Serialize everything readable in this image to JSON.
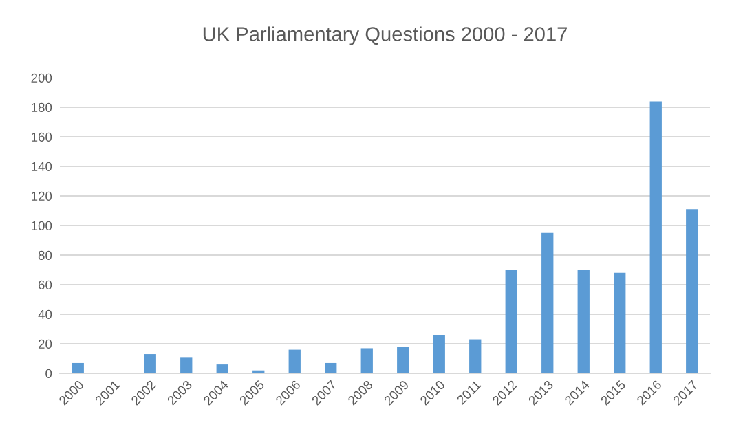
{
  "chart_data": {
    "type": "bar",
    "title": "UK Parliamentary Questions 2000 - 2017",
    "categories": [
      "2000",
      "2001",
      "2002",
      "2003",
      "2004",
      "2005",
      "2006",
      "2007",
      "2008",
      "2009",
      "2010",
      "2011",
      "2012",
      "2013",
      "2014",
      "2015",
      "2016",
      "2017"
    ],
    "values": [
      7,
      0,
      13,
      11,
      6,
      2,
      16,
      7,
      17,
      18,
      26,
      23,
      70,
      95,
      70,
      68,
      184,
      111
    ],
    "color": "#5b9bd5",
    "ylim": [
      0,
      200
    ],
    "yticks": [
      0,
      20,
      40,
      60,
      80,
      100,
      120,
      140,
      160,
      180,
      200
    ],
    "grid": "y"
  }
}
